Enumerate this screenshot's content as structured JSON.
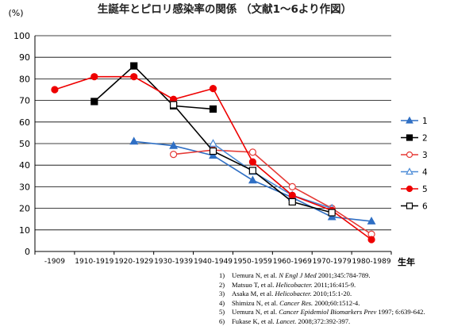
{
  "chart_data": {
    "type": "line",
    "title": "生誕年とピロリ感染率の関係 （文献1～6より作図）",
    "ylabel": "(%)",
    "xlabel": "生年",
    "ylim": [
      0,
      100
    ],
    "yticks": [
      0,
      10,
      20,
      30,
      40,
      50,
      60,
      70,
      80,
      90,
      100
    ],
    "grid": true,
    "legend_position": "right",
    "categories": [
      "-1909",
      "1910-1919",
      "1920-1929",
      "1930-1939",
      "1940-1949",
      "1950-1959",
      "1960-1969",
      "1970-1979",
      "1980-1989"
    ],
    "series": [
      {
        "name": "1",
        "color": "#2f6fc4",
        "marker": "triangle",
        "filled": true,
        "values": [
          null,
          null,
          51,
          49,
          44.5,
          33,
          25,
          16,
          14
        ]
      },
      {
        "name": "2",
        "color": "#000000",
        "marker": "square",
        "filled": true,
        "values": [
          null,
          69.5,
          86,
          67.5,
          66,
          null,
          null,
          null,
          null
        ]
      },
      {
        "name": "3",
        "color": "#e53935",
        "marker": "circle",
        "filled": false,
        "values": [
          null,
          null,
          null,
          45,
          47,
          46,
          30,
          20,
          8
        ]
      },
      {
        "name": "4",
        "color": "#4a8ad6",
        "marker": "triangle",
        "filled": false,
        "values": [
          null,
          null,
          null,
          null,
          50,
          37,
          26,
          20,
          null
        ]
      },
      {
        "name": "5",
        "color": "#ee0000",
        "marker": "circle",
        "filled": true,
        "values": [
          75,
          81,
          81,
          70.5,
          75.5,
          41.5,
          26,
          19,
          5.5
        ]
      },
      {
        "name": "6",
        "color": "#000000",
        "marker": "square",
        "filled": false,
        "values": [
          null,
          null,
          null,
          68,
          46.5,
          37.5,
          23,
          18,
          null
        ]
      }
    ]
  },
  "references": [
    {
      "num": "1)",
      "authors": "Uemura N, et al.",
      "journal": "N Engl J Med",
      "rest": " 2001;345:784-789."
    },
    {
      "num": "2)",
      "authors": "Matsuo T, et al.",
      "journal": "Helicobacter.",
      "rest": " 2011;16:415-9."
    },
    {
      "num": "3)",
      "authors": "Asaka M, et al.",
      "journal": "Helicobacter.",
      "rest": " 2010;15:1-20."
    },
    {
      "num": "4)",
      "authors": "Shimizu N, et al.",
      "journal": "Cancer Res.",
      "rest": " 2000;60:1512-4."
    },
    {
      "num": "5)",
      "authors": "Uemura N, et al.",
      "journal": "Cancer Epidemiol Biomarkers Prev",
      "rest": " 1997; 6:639-642."
    },
    {
      "num": "6)",
      "authors": "Fukase K, et al.",
      "journal": "Lancet.",
      "rest": " 2008;372:392-397."
    }
  ]
}
